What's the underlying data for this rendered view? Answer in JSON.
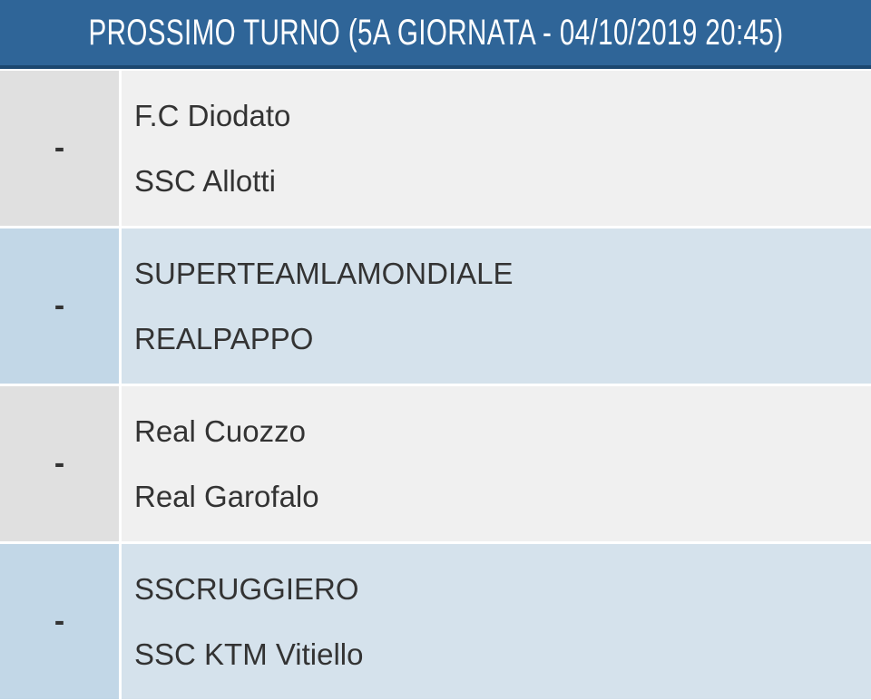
{
  "header": {
    "title": "PROSSIMO TURNO (5A GIORNATA - 04/10/2019 20:45)"
  },
  "matches": [
    {
      "score": "-",
      "home": "F.C Diodato",
      "away": "SSC Allotti"
    },
    {
      "score": "-",
      "home": "SUPERTEAMLAMONDIALE",
      "away": "REALPAPPO"
    },
    {
      "score": "-",
      "home": "Real Cuozzo",
      "away": "Real Garofalo"
    },
    {
      "score": "-",
      "home": "SSCRUGGIERO",
      "away": "SSC KTM Vitiello"
    }
  ],
  "colors": {
    "header": "#2f6598",
    "row_odd": "#f0f0f0",
    "row_even": "#d5e2ec"
  }
}
